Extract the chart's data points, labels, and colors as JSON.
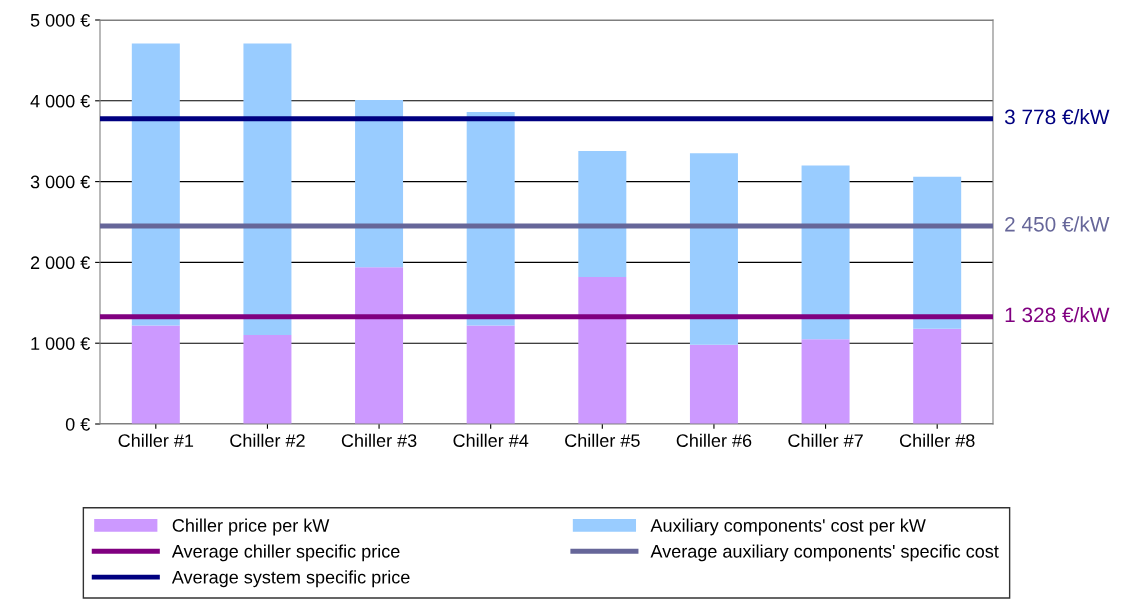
{
  "chart_data": {
    "type": "bar",
    "stacked": true,
    "categories": [
      "Chiller #1",
      "Chiller #2",
      "Chiller #3",
      "Chiller #4",
      "Chiller #5",
      "Chiller #6",
      "Chiller #7",
      "Chiller #8"
    ],
    "series": [
      {
        "name": "Chiller price per kW",
        "color": "#cc99ff",
        "values": [
          1220,
          1100,
          1940,
          1220,
          1820,
          980,
          1050,
          1180
        ]
      },
      {
        "name": "Auxiliary components' cost per kW",
        "color": "#99ccff",
        "values": [
          3490,
          3610,
          2070,
          2640,
          1560,
          2370,
          2150,
          1880
        ]
      }
    ],
    "ylim": [
      0,
      5000
    ],
    "yticks": [
      {
        "value": 0,
        "label": "0 €"
      },
      {
        "value": 1000,
        "label": "1 000 €"
      },
      {
        "value": 2000,
        "label": "2 000 €"
      },
      {
        "value": 3000,
        "label": "3 000 €"
      },
      {
        "value": 4000,
        "label": "4 000 €"
      },
      {
        "value": 5000,
        "label": "5 000 €"
      }
    ],
    "grid": "y",
    "ref_lines": [
      {
        "axis": "y",
        "value": 1328,
        "label": "Average chiller specific price",
        "color": "#800080"
      },
      {
        "axis": "y",
        "value": 2450,
        "label": "Average auxiliary components' specific cost",
        "color": "#666699"
      },
      {
        "axis": "y",
        "value": 3778,
        "label": "Average system specific price",
        "color": "#000080"
      }
    ],
    "annotations": [
      "1 328 €/kW",
      "2 450 €/kW",
      "3 778 €/kW"
    ],
    "legend": "bottom"
  }
}
